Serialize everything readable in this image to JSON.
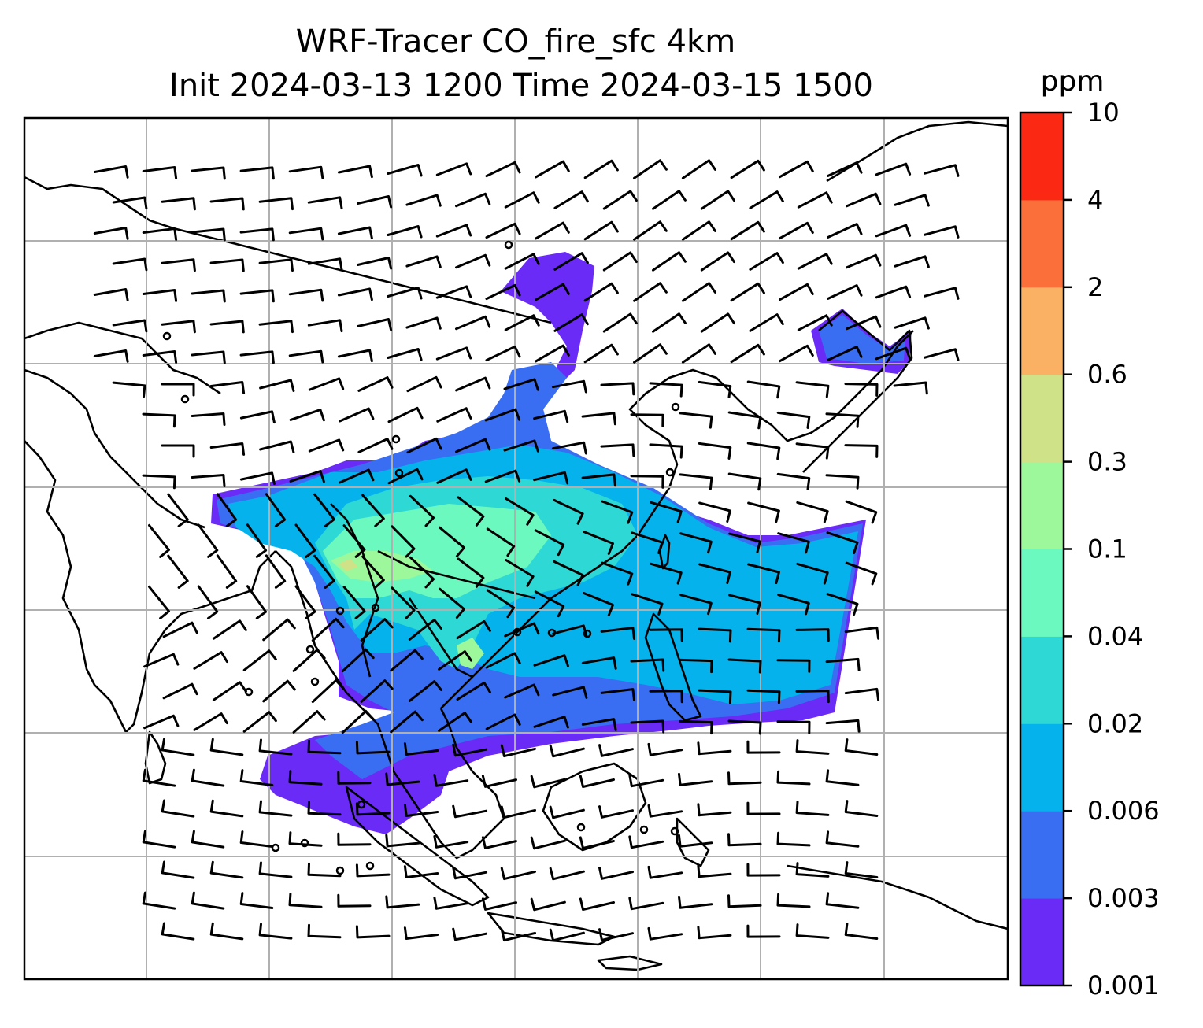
{
  "title": {
    "line1": "WRF-Tracer CO_fire_sfc 4km",
    "line2": "Init 2024-03-13 1200 Time 2024-03-15 1500"
  },
  "colorbar": {
    "unit": "ppm",
    "levels": [
      "0.001",
      "0.003",
      "0.006",
      "0.02",
      "0.04",
      "0.1",
      "0.3",
      "0.6",
      "2",
      "4",
      "10"
    ],
    "colors": [
      "#6a2bf7",
      "#3a6ef2",
      "#05b2ec",
      "#2ed8d4",
      "#6cf9bf",
      "#9cf89b",
      "#d0e288",
      "#fbb163",
      "#fb6f3a",
      "#fb2914"
    ]
  },
  "map": {
    "land_outline_color": "#000000",
    "gridline_color": "#b0b0b0",
    "wind_barb_color": "#000000"
  }
}
